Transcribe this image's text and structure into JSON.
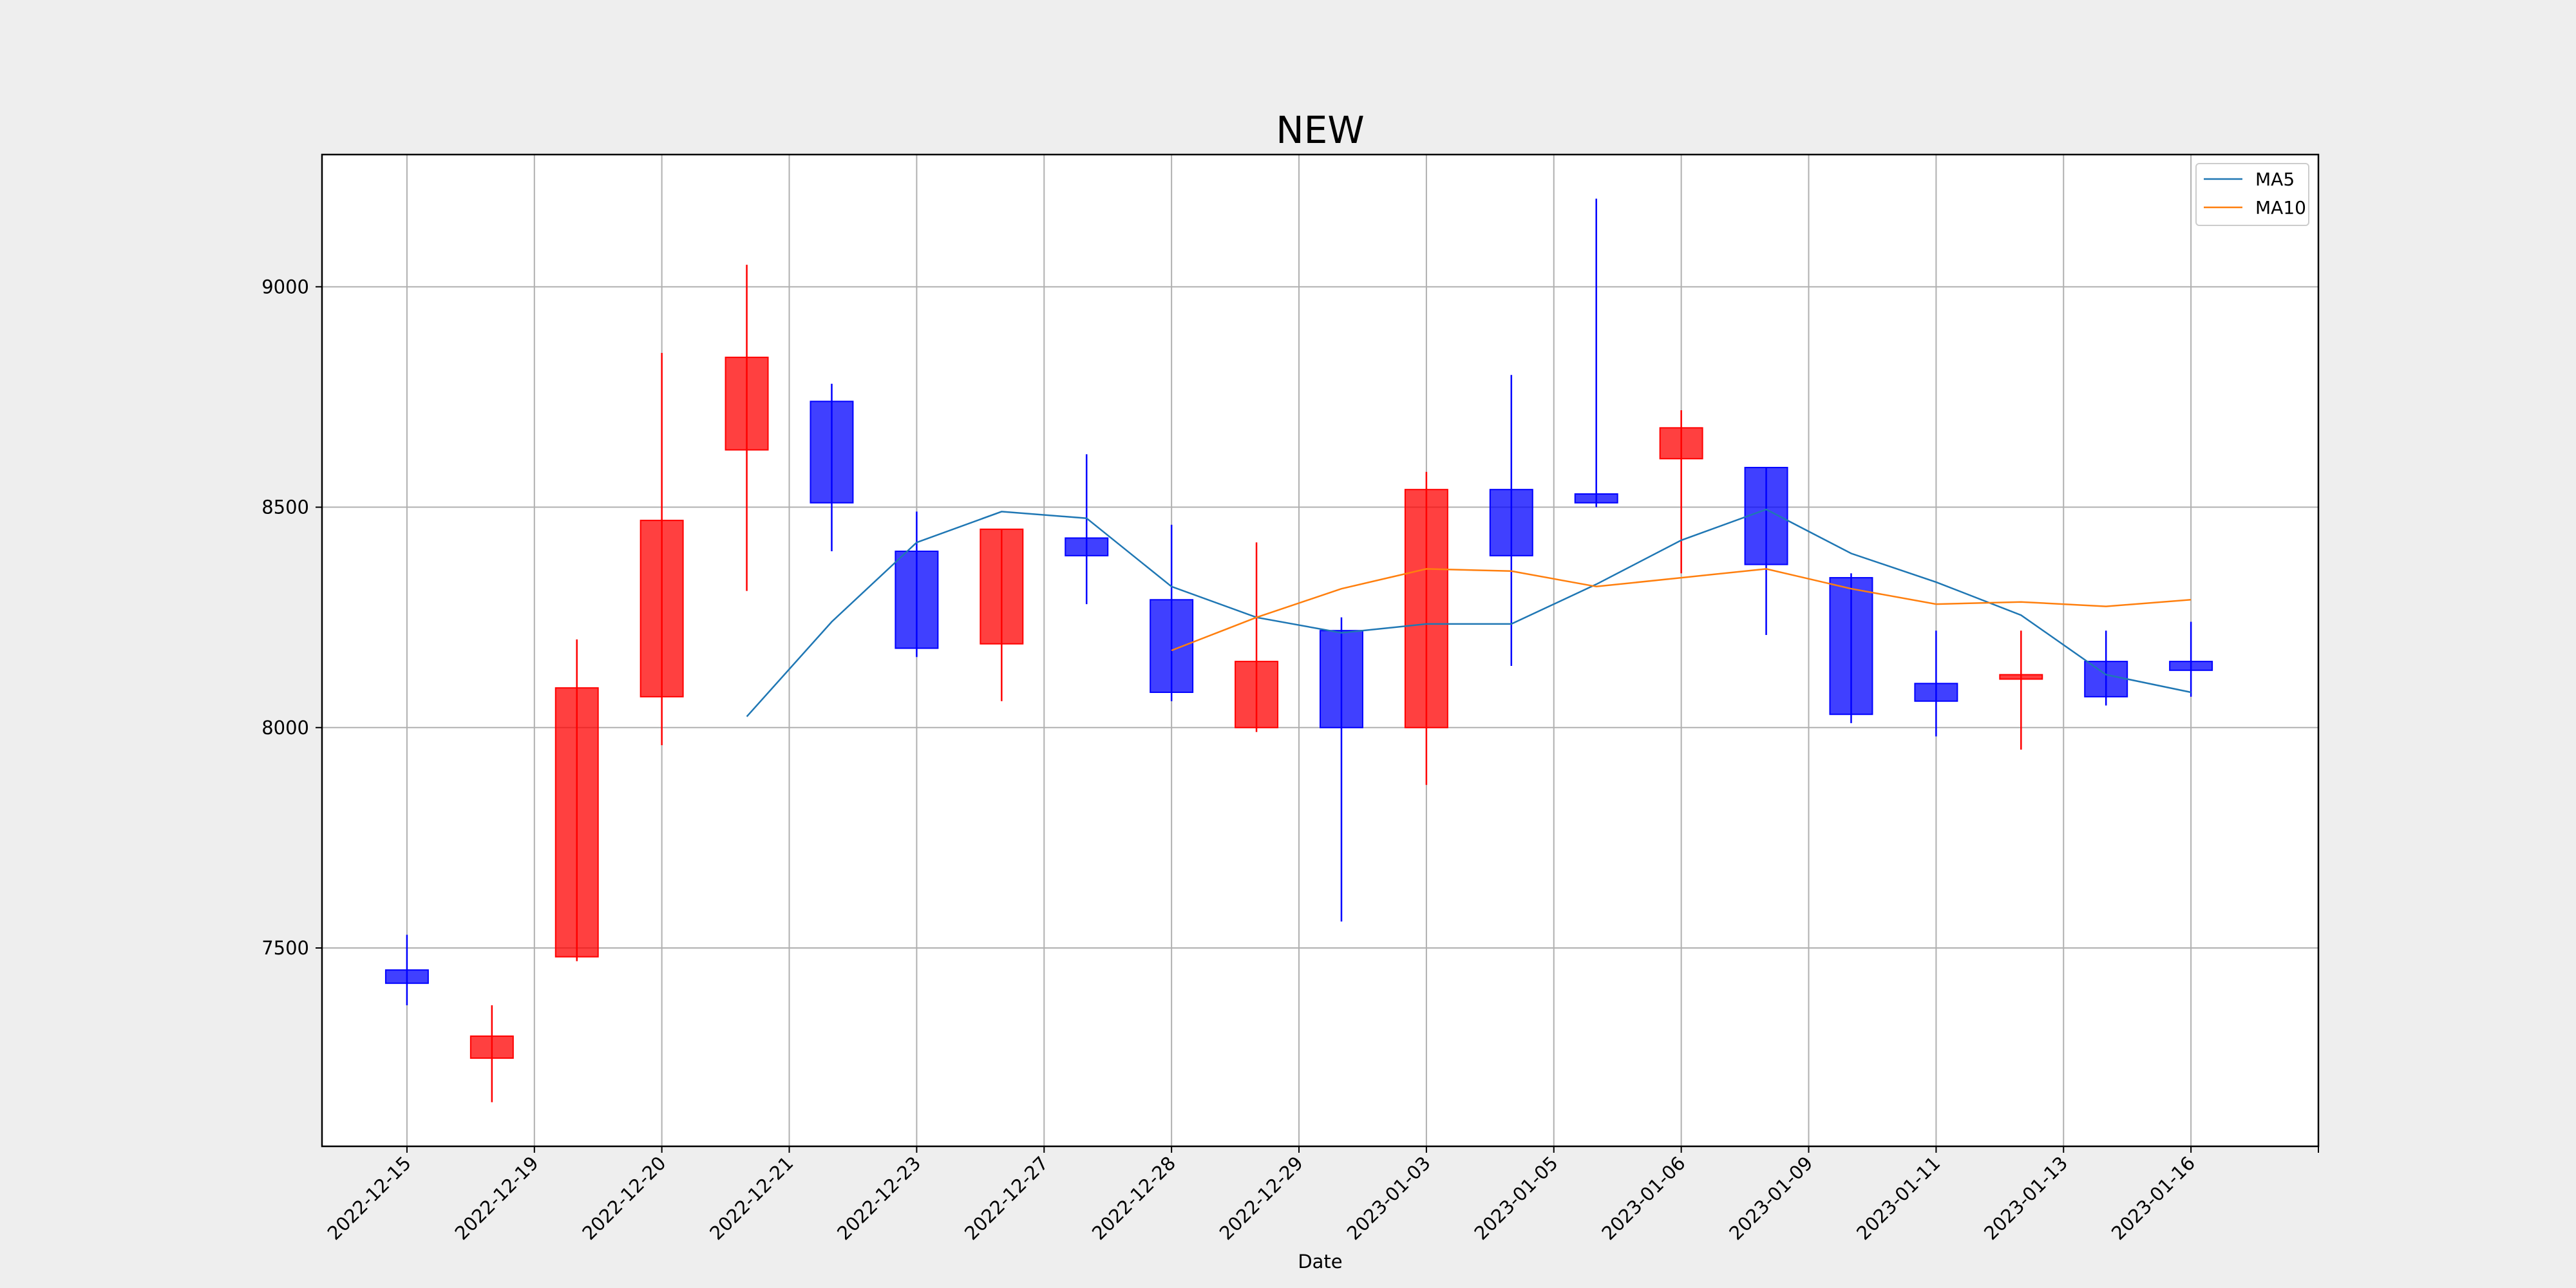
{
  "chart_data": {
    "type": "candlestick",
    "title": "NEW",
    "xlabel": "Date",
    "ylabel": "",
    "ylim": [
      7050,
      9300
    ],
    "yticks": [
      7500,
      8000,
      8500,
      9000
    ],
    "xticks": [
      "2022-12-15",
      "2022-12-19",
      "2022-12-20",
      "2022-12-21",
      "2022-12-23",
      "2022-12-27",
      "2022-12-28",
      "2022-12-29",
      "2023-01-03",
      "2023-01-05",
      "2023-01-06",
      "2023-01-09",
      "2023-01-11",
      "2023-01-13",
      "2023-01-16",
      ""
    ],
    "grid": true,
    "legend_position": "top-right",
    "colors": {
      "up": "#ff0000",
      "down": "#0000ff",
      "ma5": "#1f77b4",
      "ma10": "#ff7f0e"
    },
    "candles": [
      {
        "x": 1.0,
        "open": 7420,
        "close": 7450,
        "high": 7530,
        "low": 7370,
        "color": "down"
      },
      {
        "x": 2.0,
        "open": 7300,
        "close": 7250,
        "high": 7370,
        "low": 7150,
        "color": "up"
      },
      {
        "x": 3.0,
        "open": 7480,
        "close": 8090,
        "high": 8200,
        "low": 7470,
        "color": "up"
      },
      {
        "x": 4.0,
        "open": 8070,
        "close": 8470,
        "high": 8850,
        "low": 7960,
        "color": "up"
      },
      {
        "x": 5.0,
        "open": 8630,
        "close": 8840,
        "high": 9050,
        "low": 8310,
        "color": "up"
      },
      {
        "x": 6.0,
        "open": 8510,
        "close": 8740,
        "high": 8780,
        "low": 8400,
        "color": "down"
      },
      {
        "x": 7.0,
        "open": 8180,
        "close": 8400,
        "high": 8490,
        "low": 8160,
        "color": "down"
      },
      {
        "x": 8.0,
        "open": 8190,
        "close": 8450,
        "high": 8450,
        "low": 8060,
        "color": "up"
      },
      {
        "x": 9.0,
        "open": 8390,
        "close": 8430,
        "high": 8620,
        "low": 8280,
        "color": "down"
      },
      {
        "x": 10.0,
        "open": 8080,
        "close": 8290,
        "high": 8460,
        "low": 8060,
        "color": "down"
      },
      {
        "x": 11.0,
        "open": 8000,
        "close": 8150,
        "high": 8420,
        "low": 7990,
        "color": "up"
      },
      {
        "x": 12.0,
        "open": 8000,
        "close": 8220,
        "high": 8250,
        "low": 7560,
        "color": "down"
      },
      {
        "x": 13.0,
        "open": 8000,
        "close": 8540,
        "high": 8580,
        "low": 7870,
        "color": "up"
      },
      {
        "x": 14.0,
        "open": 8390,
        "close": 8540,
        "high": 8800,
        "low": 8140,
        "color": "down"
      },
      {
        "x": 15.0,
        "open": 8510,
        "close": 8530,
        "high": 9200,
        "low": 8500,
        "color": "down"
      },
      {
        "x": 16.0,
        "open": 8610,
        "close": 8680,
        "high": 8720,
        "low": 8350,
        "color": "up"
      },
      {
        "x": 17.0,
        "open": 8370,
        "close": 8590,
        "high": 8590,
        "low": 8210,
        "color": "down"
      },
      {
        "x": 18.0,
        "open": 8030,
        "close": 8340,
        "high": 8350,
        "low": 8010,
        "color": "down"
      },
      {
        "x": 19.0,
        "open": 8060,
        "close": 8100,
        "high": 8220,
        "low": 7980,
        "color": "down"
      },
      {
        "x": 20.0,
        "open": 8110,
        "close": 8120,
        "high": 8220,
        "low": 7950,
        "color": "up"
      },
      {
        "x": 21.0,
        "open": 8070,
        "close": 8150,
        "high": 8220,
        "low": 8050,
        "color": "down"
      },
      {
        "x": 22.0,
        "open": 8130,
        "close": 8150,
        "high": 8240,
        "low": 8070,
        "color": "down"
      }
    ],
    "series": [
      {
        "name": "MA5",
        "x": [
          5,
          6,
          7,
          8,
          9,
          10,
          11,
          12,
          13,
          14,
          15,
          16,
          17,
          18,
          19,
          20,
          21,
          22
        ],
        "values": [
          8025,
          8240,
          8420,
          8490,
          8475,
          8320,
          8250,
          8215,
          8235,
          8235,
          8325,
          8425,
          8495,
          8395,
          8330,
          8255,
          8120,
          8080
        ]
      },
      {
        "name": "MA10",
        "x": [
          10,
          11,
          12,
          13,
          14,
          15,
          16,
          17,
          18,
          19,
          20,
          21,
          22
        ],
        "values": [
          8175,
          8250,
          8315,
          8360,
          8355,
          8320,
          8340,
          8360,
          8315,
          8280,
          8285,
          8275,
          8290
        ]
      }
    ]
  }
}
